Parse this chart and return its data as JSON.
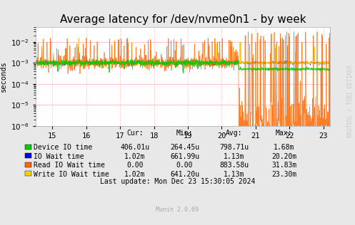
{
  "title": "Average latency for /dev/nvme0n1 - by week",
  "ylabel": "seconds",
  "xlabel_ticks": [
    15,
    16,
    17,
    18,
    19,
    20,
    21,
    22,
    23
  ],
  "xlim": [
    14.5,
    23.2
  ],
  "ylim_log": [
    -6,
    -1
  ],
  "background_color": "#e8e8e8",
  "plot_bg_color": "#ffffff",
  "grid_color_major": "#ff9999",
  "grid_color_minor": "#dddddd",
  "colors": {
    "device_io": "#00cc00",
    "io_wait": "#0000ff",
    "read_io_wait": "#ff6600",
    "write_io_wait": "#ffcc00"
  },
  "legend_labels": [
    "Device IO time",
    "IO Wait time",
    "Read IO Wait time",
    "Write IO Wait time"
  ],
  "legend_colors": [
    "#00cc00",
    "#0000ff",
    "#ff6600",
    "#ffcc00"
  ],
  "legend_cur": [
    "406.01u",
    "1.02m",
    "0.00",
    "1.02m"
  ],
  "legend_min": [
    "264.45u",
    "661.99u",
    "0.00",
    "641.20u"
  ],
  "legend_avg": [
    "798.71u",
    "1.13m",
    "883.58u",
    "1.13m"
  ],
  "legend_max": [
    "1.68m",
    "20.20m",
    "31.83m",
    "23.30m"
  ],
  "last_update": "Last update: Mon Dec 23 15:30:05 2024",
  "munin_version": "Munin 2.0.69",
  "watermark": "RRDTOOL / TOBI OETIKER",
  "title_fontsize": 11,
  "axis_fontsize": 7.5,
  "legend_fontsize": 7
}
